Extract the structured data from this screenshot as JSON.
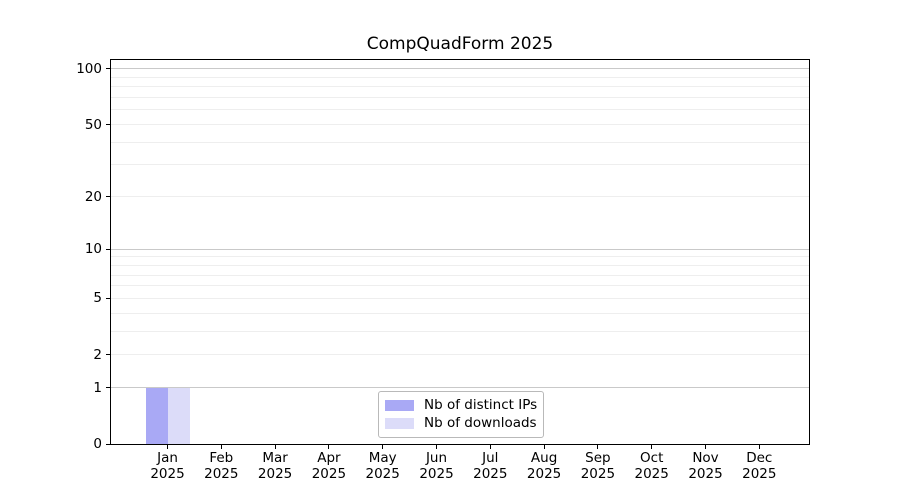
{
  "figure": {
    "title": "CompQuadForm 2025"
  },
  "chart_data": {
    "type": "bar",
    "title": "CompQuadForm 2025",
    "categories": [
      "Jan",
      "Feb",
      "Mar",
      "Apr",
      "May",
      "Jun",
      "Jul",
      "Aug",
      "Sep",
      "Oct",
      "Nov",
      "Dec"
    ],
    "x_year_label": "2025",
    "series": [
      {
        "name": "Nb of distinct IPs",
        "color": "#a9a9f5",
        "values": [
          1,
          0,
          0,
          0,
          0,
          0,
          0,
          0,
          0,
          0,
          0,
          0
        ]
      },
      {
        "name": "Nb of downloads",
        "color": "#dcdcf9",
        "values": [
          1,
          0,
          0,
          0,
          0,
          0,
          0,
          0,
          0,
          0,
          0,
          0
        ]
      }
    ],
    "yscale": "log1p",
    "ylim": [
      0,
      113
    ],
    "ytick_values": [
      0,
      1,
      2,
      5,
      10,
      20,
      50,
      100
    ],
    "grid": {
      "decade_lines": [
        1,
        10,
        100
      ],
      "minor_lines": [
        2,
        3,
        4,
        5,
        6,
        7,
        8,
        9,
        20,
        30,
        40,
        50,
        60,
        70,
        80,
        90
      ],
      "decade_color": "#c9c9c9",
      "minor_color": "#eeeeee"
    },
    "legend": {
      "position": "lower center",
      "entries": [
        "Nb of distinct IPs",
        "Nb of downloads"
      ]
    },
    "colors": {
      "axis": "#000000",
      "text": "#000000",
      "background": "#ffffff"
    }
  }
}
